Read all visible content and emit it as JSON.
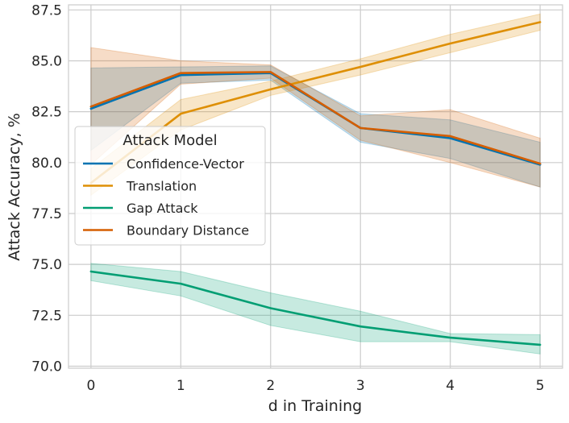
{
  "chart_data": {
    "type": "line",
    "title": "",
    "xlabel": "d in Training",
    "ylabel": "Attack Accuracy, %",
    "x": [
      0,
      1,
      2,
      3,
      4,
      5
    ],
    "xlim": [
      -0.25,
      5.25
    ],
    "ylim": [
      69.9,
      87.75
    ],
    "xticks": [
      0,
      1,
      2,
      3,
      4,
      5
    ],
    "yticks": [
      70.0,
      72.5,
      75.0,
      77.5,
      80.0,
      82.5,
      85.0,
      87.5
    ],
    "ytick_labels": [
      "70.0",
      "72.5",
      "75.0",
      "77.5",
      "80.0",
      "82.5",
      "85.0",
      "87.5"
    ],
    "grid": true,
    "legend": {
      "title": "Attack Model",
      "placement": "center-left"
    },
    "series": [
      {
        "name": "Confidence-Vector",
        "color": "#0173b2",
        "values": [
          82.65,
          84.3,
          84.4,
          81.7,
          81.2,
          79.9
        ],
        "lower": [
          80.6,
          83.9,
          84.05,
          81.0,
          80.2,
          78.8
        ],
        "upper": [
          84.65,
          84.7,
          84.75,
          82.4,
          82.1,
          81.0
        ]
      },
      {
        "name": "Translation",
        "color": "#de8f05",
        "values": [
          79.0,
          82.4,
          83.6,
          84.7,
          85.85,
          86.9
        ],
        "lower": [
          78.4,
          81.6,
          83.3,
          84.3,
          85.4,
          86.5
        ],
        "upper": [
          79.7,
          83.1,
          84.0,
          85.1,
          86.3,
          87.3
        ]
      },
      {
        "name": "Gap Attack",
        "color": "#029e73",
        "values": [
          74.65,
          74.05,
          72.85,
          71.95,
          71.4,
          71.05
        ],
        "lower": [
          74.2,
          73.45,
          72.0,
          71.2,
          71.2,
          70.6
        ],
        "upper": [
          75.05,
          74.65,
          73.6,
          72.7,
          71.6,
          71.55
        ]
      },
      {
        "name": "Boundary Distance",
        "color": "#d55e00",
        "values": [
          82.75,
          84.4,
          84.45,
          81.7,
          81.3,
          79.95
        ],
        "lower": [
          79.9,
          83.85,
          84.15,
          81.1,
          80.0,
          78.8
        ],
        "upper": [
          85.65,
          85.0,
          84.8,
          82.3,
          82.6,
          81.2
        ]
      }
    ]
  }
}
